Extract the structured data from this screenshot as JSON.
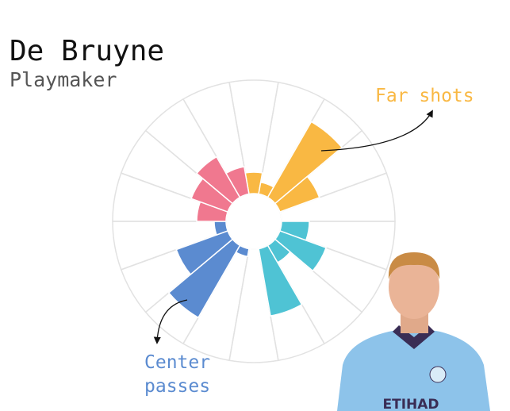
{
  "chart_data": {
    "type": "radial_bar",
    "title": "De Bruyne",
    "subtitle": "Playmaker",
    "values": [
      27,
      15,
      110,
      53,
      0,
      35,
      62,
      25,
      86,
      0,
      10,
      105,
      69,
      15,
      37,
      49,
      59,
      35
    ],
    "colors": [
      "#f9b843",
      "#f9b843",
      "#f9b843",
      "#f9b843",
      "#f9b843",
      "#4fc3d4",
      "#4fc3d4",
      "#4fc3d4",
      "#4fc3d4",
      "#5b8bd0",
      "#5b8bd0",
      "#5b8bd0",
      "#5b8bd0",
      "#5b8bd0",
      "#f0788f",
      "#f0788f",
      "#f0788f",
      "#f0788f"
    ],
    "rlim": [
      0,
      143
    ],
    "annotations": [
      {
        "lines": [
          "Far shots"
        ],
        "color": "#f9b843"
      },
      {
        "lines": [
          "Center",
          "passes"
        ],
        "color": "#5b8bd0"
      }
    ],
    "photo": {
      "shirt_text": "ETIHAD"
    }
  }
}
